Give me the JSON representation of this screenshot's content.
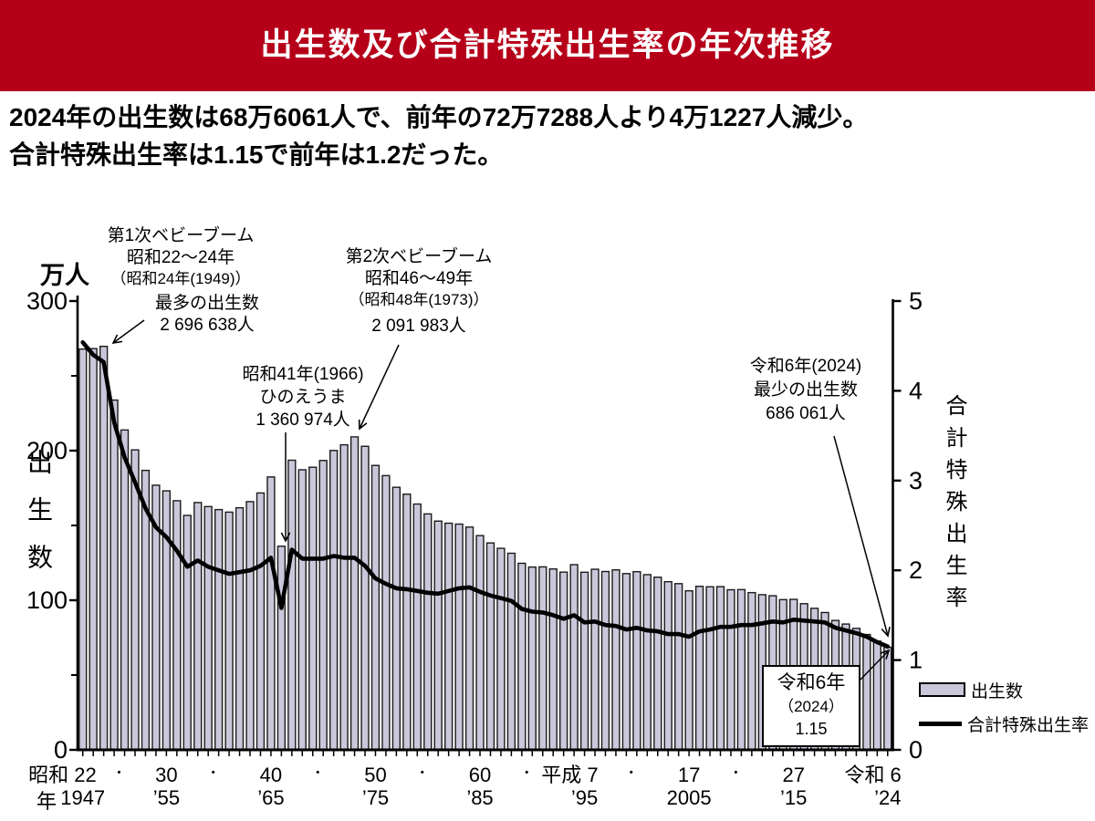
{
  "header": {
    "title": "出生数及び合計特殊出生率の年次推移",
    "bg": "#b60019"
  },
  "lead": {
    "line1": "2024年の出生数は68万6061人で、前年の72万7288人より4万1227人減少。",
    "line2": "合計特殊出生率は1.15で前年は1.2だった。"
  },
  "colors": {
    "bar_fill": "#cbc7db",
    "bar_stroke": "#1a1a1a",
    "line": "#000000",
    "axis": "#000000",
    "banner_text": "#ffffff"
  },
  "axes": {
    "left_unit": "万人",
    "left_axis_title": "出生数",
    "right_axis_title": "合計特殊出生率",
    "left_tick_labels": [
      300,
      200,
      100,
      0
    ],
    "left_minor_ticks": [
      250,
      150,
      50
    ],
    "right_tick_labels": [
      5,
      4,
      3,
      2,
      1,
      0
    ],
    "x_row2_prefix": "年",
    "separator_dot": "・",
    "x_labels": [
      {
        "year": 1947,
        "era": "昭和 22",
        "west": "1947"
      },
      {
        "year": 1955,
        "era": "30",
        "west": "’55"
      },
      {
        "year": 1965,
        "era": "40",
        "west": "’65"
      },
      {
        "year": 1975,
        "era": "50",
        "west": "’75"
      },
      {
        "year": 1985,
        "era": "60",
        "west": "’85"
      },
      {
        "year": 1995,
        "era": "平成 7",
        "west": "’95"
      },
      {
        "year": 2005,
        "era": "17",
        "west": "2005"
      },
      {
        "year": 2015,
        "era": "27",
        "west": "’15"
      },
      {
        "year": 2024,
        "era": "令和 6",
        "west": "’24"
      }
    ]
  },
  "annotations": {
    "first_boom": {
      "lines": [
        "第1次ベビーブーム",
        "昭和22～24年",
        "（昭和24年(1949)）"
      ]
    },
    "first_boom_max": {
      "lines": [
        "最多の出生数",
        "2 696 638人"
      ]
    },
    "second_boom": {
      "lines": [
        "第2次ベビーブーム",
        "昭和46～49年",
        "（昭和48年(1973)）",
        "2 091 983人"
      ]
    },
    "hinoeuma": {
      "lines": [
        "昭和41年(1966)",
        "ひのえうま",
        "1 360 974人"
      ]
    },
    "reiwa6_min": {
      "lines": [
        "令和6年(2024)",
        "最少の出生数",
        "686 061人"
      ]
    },
    "reiwa6_tfr_box": {
      "lines": [
        "令和6年",
        "（2024）",
        "1.15"
      ]
    }
  },
  "legend": {
    "bar_label": "出生数",
    "line_label": "合計特殊出生率"
  },
  "chart_data": {
    "type": "bar",
    "title": "出生数及び合計特殊出生率の年次推移",
    "xlabel": "年（昭和22／1947 〜 令和6／2024）",
    "grid": false,
    "legend_position": "bottom-right",
    "y_left": {
      "label": "出生数（万人）",
      "range": [
        0,
        300
      ],
      "labeled_ticks": [
        0,
        100,
        200,
        300
      ]
    },
    "y_right": {
      "label": "合計特殊出生率",
      "range": [
        0,
        5
      ],
      "labeled_ticks": [
        0,
        1,
        2,
        3,
        4,
        5
      ]
    },
    "years": [
      1947,
      1948,
      1949,
      1950,
      1951,
      1952,
      1953,
      1954,
      1955,
      1956,
      1957,
      1958,
      1959,
      1960,
      1961,
      1962,
      1963,
      1964,
      1965,
      1966,
      1967,
      1968,
      1969,
      1970,
      1971,
      1972,
      1973,
      1974,
      1975,
      1976,
      1977,
      1978,
      1979,
      1980,
      1981,
      1982,
      1983,
      1984,
      1985,
      1986,
      1987,
      1988,
      1989,
      1990,
      1991,
      1992,
      1993,
      1994,
      1995,
      1996,
      1997,
      1998,
      1999,
      2000,
      2001,
      2002,
      2003,
      2004,
      2005,
      2006,
      2007,
      2008,
      2009,
      2010,
      2011,
      2012,
      2013,
      2014,
      2015,
      2016,
      2017,
      2018,
      2019,
      2020,
      2021,
      2022,
      2023,
      2024
    ],
    "series": [
      {
        "name": "出生数",
        "type": "bar",
        "unit": "万人",
        "values": [
          267.9,
          268.2,
          269.7,
          233.8,
          213.8,
          200.5,
          186.8,
          176.9,
          173.1,
          166.5,
          156.7,
          165.3,
          162.6,
          160.6,
          158.9,
          161.8,
          165.9,
          171.7,
          182.4,
          136.1,
          193.6,
          187.2,
          188.9,
          193.4,
          200.1,
          203.9,
          209.2,
          202.9,
          190.1,
          183.3,
          175.5,
          170.9,
          164.3,
          157.7,
          152.9,
          151.5,
          150.9,
          148.9,
          143.2,
          138.3,
          134.7,
          131.4,
          124.7,
          122.2,
          122.3,
          120.9,
          118.8,
          123.8,
          118.7,
          120.7,
          119.2,
          120.3,
          117.8,
          119.1,
          117.1,
          115.4,
          112.4,
          111.1,
          106.3,
          109.3,
          109.0,
          109.1,
          107.0,
          107.1,
          105.1,
          103.7,
          103.0,
          100.4,
          100.6,
          97.7,
          94.6,
          91.8,
          86.5,
          84.1,
          81.2,
          77.1,
          72.7,
          68.6
        ],
        "key_points": {
          "max_1949": 269.6638,
          "hinoeuma_1966": 136.0974,
          "second_boom_1973": 209.1983,
          "min_2024": 68.6061
        }
      },
      {
        "name": "合計特殊出生率",
        "type": "line",
        "values": [
          4.54,
          4.4,
          4.32,
          3.65,
          3.26,
          2.98,
          2.69,
          2.48,
          2.37,
          2.22,
          2.04,
          2.11,
          2.04,
          2.0,
          1.96,
          1.98,
          2.0,
          2.05,
          2.14,
          1.58,
          2.23,
          2.13,
          2.13,
          2.13,
          2.16,
          2.14,
          2.14,
          2.05,
          1.91,
          1.85,
          1.8,
          1.79,
          1.77,
          1.75,
          1.74,
          1.77,
          1.8,
          1.81,
          1.76,
          1.72,
          1.69,
          1.66,
          1.57,
          1.54,
          1.53,
          1.5,
          1.46,
          1.5,
          1.42,
          1.43,
          1.39,
          1.38,
          1.34,
          1.36,
          1.33,
          1.32,
          1.29,
          1.29,
          1.26,
          1.32,
          1.34,
          1.37,
          1.37,
          1.39,
          1.39,
          1.41,
          1.43,
          1.42,
          1.45,
          1.44,
          1.43,
          1.42,
          1.36,
          1.33,
          1.3,
          1.26,
          1.2,
          1.15
        ],
        "key_points": {
          "tfr_2024": 1.15,
          "tfr_2023": 1.2
        }
      }
    ]
  }
}
